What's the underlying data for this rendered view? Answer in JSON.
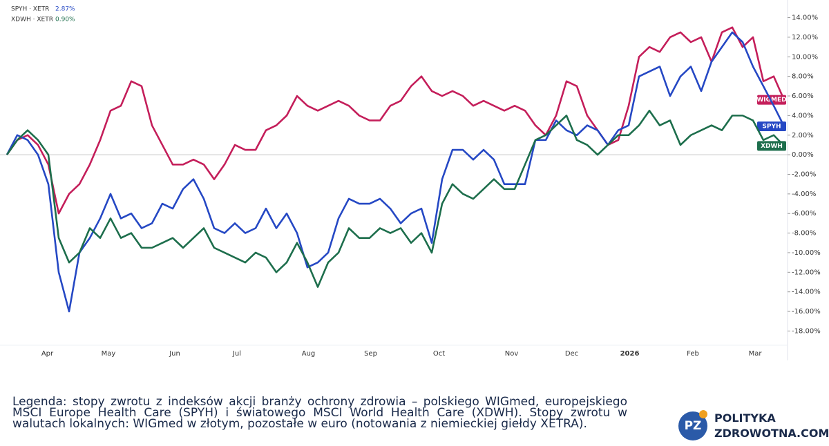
{
  "chart_data": {
    "type": "line",
    "legend": [
      {
        "label": "SPYH · XETR",
        "change": "2.87%"
      },
      {
        "label": "XDWH · XETR",
        "change": "0.90%"
      }
    ],
    "x": [
      0,
      1,
      2,
      3,
      4,
      5,
      6,
      7,
      8,
      9,
      10,
      11,
      12,
      13,
      14,
      15,
      16,
      17,
      18,
      19,
      20,
      21,
      22,
      23,
      24,
      25,
      26,
      27,
      28,
      29,
      30,
      31,
      32,
      33,
      34,
      35,
      36,
      37,
      38,
      39,
      40,
      41,
      42,
      43,
      44,
      45,
      46,
      47,
      48,
      49,
      50,
      51,
      52,
      53,
      54,
      55,
      56,
      57,
      58,
      59,
      60,
      61,
      62,
      63,
      64,
      65,
      66,
      67,
      68,
      69,
      70,
      71,
      72,
      73,
      74,
      75
    ],
    "xlim": [
      0,
      75
    ],
    "xticks": [
      {
        "value": 3.9,
        "label": "Apr"
      },
      {
        "value": 9.8,
        "label": "May"
      },
      {
        "value": 16.2,
        "label": "Jun"
      },
      {
        "value": 22.2,
        "label": "Jul"
      },
      {
        "value": 29.1,
        "label": "Aug"
      },
      {
        "value": 35.1,
        "label": "Sep"
      },
      {
        "value": 41.7,
        "label": "Oct"
      },
      {
        "value": 48.7,
        "label": "Nov"
      },
      {
        "value": 54.5,
        "label": "Dec"
      },
      {
        "value": 60.1,
        "label": "2026"
      },
      {
        "value": 66.2,
        "label": "Feb"
      },
      {
        "value": 72.2,
        "label": "Mar"
      }
    ],
    "ylim": [
      -21,
      15.8
    ],
    "yticks": [
      {
        "value": -18,
        "label": "-18.00%"
      },
      {
        "value": -16,
        "label": "-16.00%"
      },
      {
        "value": -14,
        "label": "-14.00%"
      },
      {
        "value": -12,
        "label": "-12.00%"
      },
      {
        "value": -10,
        "label": "-10.00%"
      },
      {
        "value": -8,
        "label": "-8.00%"
      },
      {
        "value": -6,
        "label": "-6.00%"
      },
      {
        "value": -4,
        "label": "-4.00%"
      },
      {
        "value": -2,
        "label": "-2.00%"
      },
      {
        "value": 0,
        "label": "0.00%"
      },
      {
        "value": 2,
        "label": "2.00%"
      },
      {
        "value": 4,
        "label": "4.00%"
      },
      {
        "value": 6,
        "label": "6.00%"
      },
      {
        "value": 8,
        "label": "8.00%"
      },
      {
        "value": 10,
        "label": "10.00%"
      },
      {
        "value": 12,
        "label": "12.00%"
      },
      {
        "value": 14,
        "label": "14.00%"
      }
    ],
    "series": [
      {
        "name": "WIGMED",
        "color": "#c41e5a",
        "values": [
          0,
          1.5,
          2,
          1,
          -1,
          -6,
          -4,
          -3,
          -1,
          1.5,
          4.5,
          5,
          7.5,
          7,
          3,
          1,
          -1,
          -1,
          -0.5,
          -1,
          -2.5,
          -1,
          1,
          0.5,
          0.5,
          2.5,
          3,
          4,
          6,
          5,
          4.5,
          5,
          5.5,
          5,
          4,
          3.5,
          3.5,
          5,
          5.5,
          7,
          8,
          6.5,
          6,
          6.5,
          6,
          5,
          5.5,
          5,
          4.5,
          5,
          4.5,
          3,
          2,
          4,
          7.5,
          7,
          4,
          2.5,
          1,
          1.5,
          5,
          10,
          11,
          10.5,
          12,
          12.5,
          11.5,
          12,
          9.5,
          12.5,
          13,
          11,
          12,
          7.5,
          8,
          5.6
        ]
      },
      {
        "name": "SPYH",
        "color": "#2548c4",
        "values": [
          0,
          2,
          1.5,
          0,
          -3,
          -12,
          -16,
          -10,
          -8.5,
          -6.5,
          -4,
          -6.5,
          -6,
          -7.5,
          -7,
          -5,
          -5.5,
          -3.5,
          -2.5,
          -4.5,
          -7.5,
          -8,
          -7,
          -8,
          -7.5,
          -5.5,
          -7.5,
          -6,
          -8,
          -11.5,
          -11,
          -10,
          -6.5,
          -4.5,
          -5,
          -5,
          -4.5,
          -5.5,
          -7,
          -6,
          -5.5,
          -9,
          -2.5,
          0.5,
          0.5,
          -0.5,
          0.5,
          -0.5,
          -3,
          -3,
          -3,
          1.5,
          1.5,
          3.5,
          2.5,
          2,
          3,
          2.5,
          1,
          2.5,
          3,
          8,
          8.5,
          9,
          6,
          8,
          9,
          6.5,
          9.5,
          11,
          12.5,
          11.5,
          9,
          7,
          5,
          2.9
        ]
      },
      {
        "name": "XDWH",
        "color": "#1d6e4c",
        "values": [
          0,
          1.5,
          2.5,
          1.5,
          0,
          -8.5,
          -11,
          -10,
          -7.5,
          -8.5,
          -6.5,
          -8.5,
          -8,
          -9.5,
          -9.5,
          -9,
          -8.5,
          -9.5,
          -8.5,
          -7.5,
          -9.5,
          -10,
          -10.5,
          -11,
          -10,
          -10.5,
          -12,
          -11,
          -9,
          -11,
          -13.5,
          -11,
          -10,
          -7.5,
          -8.5,
          -8.5,
          -7.5,
          -8,
          -7.5,
          -9,
          -8,
          -10,
          -5,
          -3,
          -4,
          -4.5,
          -3.5,
          -2.5,
          -3.5,
          -3.5,
          -1,
          1.5,
          2,
          3,
          4,
          1.5,
          1,
          0,
          1,
          2,
          2,
          3,
          4.5,
          3,
          3.5,
          1,
          2,
          2.5,
          3,
          2.5,
          4,
          4,
          3.5,
          1.5,
          2,
          0.9
        ]
      }
    ]
  },
  "caption": "Legenda: stopy zwrotu z indeksów akcji branży ochrony zdrowia – polskiego WIGmed, europejskiego MSCI Europe Health Care (SPYH) i światowego MSCI World Health Care (XDWH). Stopy zwrotu w walutach lokalnych: WIGmed w złotym, pozostałe w euro (notowania z niemieckiej giełdy XETRA).",
  "logo": {
    "badge": "PZ",
    "line1": "POLITYKA",
    "line2": "ZDROWOTNA.COM"
  }
}
